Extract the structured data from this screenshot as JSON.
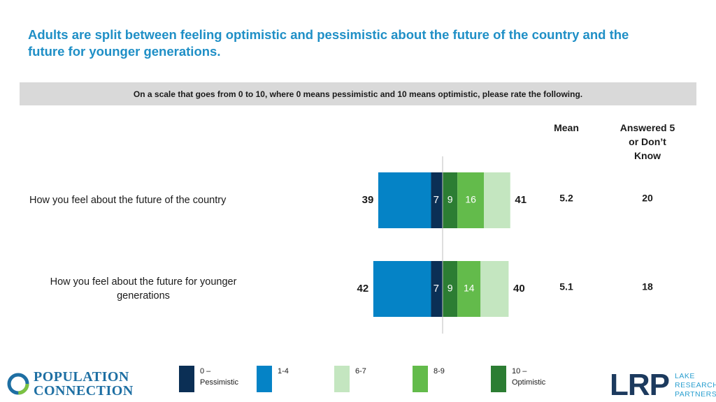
{
  "header": {
    "title": "Adults are split between feeling optimistic and pessimistic about the future of the country and the future for younger generations.",
    "question": "On a scale that goes from 0 to 10, where 0 means pessimistic and 10 means optimistic, please rate the following."
  },
  "columns": {
    "mean": "Mean",
    "answered_line1": "Answered 5",
    "answered_line2": "or Don’t",
    "answered_line3": "Know"
  },
  "rows": [
    {
      "label_line1": "How you feel about the future of the country",
      "label_line2": ""
    },
    {
      "label_line1": "How you feel about the future for younger",
      "label_line2": "generations"
    }
  ],
  "colors": {
    "c0": "#0b2f55",
    "c1_4": "#0583c6",
    "c6_7": "#c4e6c0",
    "c8_9": "#63bb4b",
    "c10": "#2c7d33",
    "axis": "#bfbfbf"
  },
  "legend": [
    {
      "line1": "0 –",
      "line2": "Pessimistic",
      "color_key": "c0"
    },
    {
      "line1": "1-4",
      "line2": "",
      "color_key": "c1_4"
    },
    {
      "line1": "6-7",
      "line2": "",
      "color_key": "c6_7"
    },
    {
      "line1": "8-9",
      "line2": "",
      "color_key": "c8_9"
    },
    {
      "line1": "10 –",
      "line2": "Optimistic",
      "color_key": "c10"
    }
  ],
  "logos": {
    "population_line1": "POPULATION",
    "population_line2": "CONNECTION",
    "lrp": "LRP",
    "lrp_line1": "LAKE",
    "lrp_line2": "RESEARCH",
    "lrp_line3": "PARTNERS"
  },
  "chart_data": {
    "type": "bar",
    "orientation": "horizontal-diverging",
    "categories": [
      "How you feel about the future of the country",
      "How you feel about the future for younger generations"
    ],
    "series": [
      {
        "name": "0 – Pessimistic",
        "values": [
          7,
          7
        ],
        "side": "negative"
      },
      {
        "name": "1-4",
        "values": [
          32,
          35
        ],
        "side": "negative"
      },
      {
        "name": "10 – Optimistic",
        "values": [
          9,
          9
        ],
        "side": "positive"
      },
      {
        "name": "8-9",
        "values": [
          16,
          14
        ],
        "side": "positive"
      },
      {
        "name": "6-7",
        "values": [
          16,
          17
        ],
        "side": "positive"
      }
    ],
    "totals_pessimistic": [
      39,
      42
    ],
    "totals_optimistic": [
      41,
      40
    ],
    "mean": [
      "5.2",
      "5.1"
    ],
    "answered_5_or_dont_know": [
      "20",
      "18"
    ]
  }
}
